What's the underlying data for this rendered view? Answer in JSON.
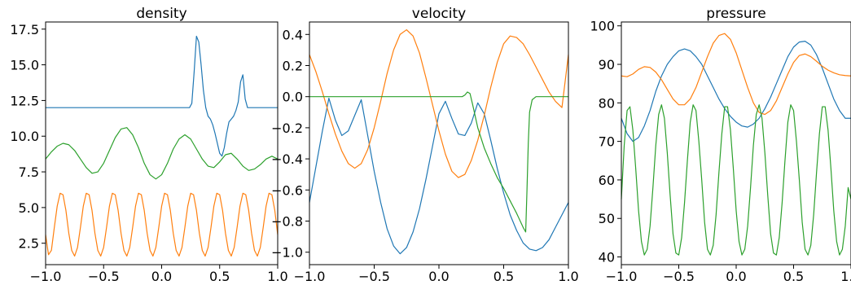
{
  "chart_data": [
    {
      "type": "line",
      "title": "density",
      "xlim": [
        -1.0,
        1.0
      ],
      "ylim": [
        1.0,
        18.0
      ],
      "x_ticks": [
        -1.0,
        -0.5,
        0.0,
        0.5,
        1.0
      ],
      "x_tick_labels": [
        "−1.0",
        "−0.5",
        "0.0",
        "0.5",
        "1.0"
      ],
      "y_ticks": [
        2.5,
        5.0,
        7.5,
        10.0,
        12.5,
        15.0,
        17.5
      ],
      "y_tick_labels": [
        "2.5",
        "5.0",
        "7.5",
        "10.0",
        "12.5",
        "15.0",
        "17.5"
      ],
      "grid": false,
      "series": [
        {
          "color": "#1f77b4",
          "x": [
            -1.0,
            -0.6,
            -0.2,
            0.1,
            0.2,
            0.22,
            0.24,
            0.26,
            0.28,
            0.3,
            0.32,
            0.34,
            0.36,
            0.38,
            0.4,
            0.42,
            0.44,
            0.46,
            0.48,
            0.5,
            0.52,
            0.54,
            0.56,
            0.58,
            0.6,
            0.62,
            0.64,
            0.66,
            0.68,
            0.7,
            0.72,
            0.74,
            0.76,
            0.78,
            0.8,
            1.0
          ],
          "y": [
            12.0,
            12.0,
            12.0,
            12.0,
            12.0,
            12.0,
            12.0,
            12.3,
            14.5,
            17.0,
            16.6,
            15.0,
            13.2,
            12.0,
            11.4,
            11.2,
            10.8,
            10.2,
            9.5,
            8.8,
            8.6,
            9.2,
            10.2,
            11.0,
            11.2,
            11.4,
            11.8,
            12.4,
            13.8,
            14.3,
            12.6,
            12.0,
            12.0,
            12.0,
            12.0,
            12.0
          ]
        },
        {
          "color": "#ff7f0e",
          "x": [
            -1.0,
            -0.975,
            -0.95,
            -0.925,
            -0.9,
            -0.875,
            -0.85,
            -0.825,
            -0.8,
            -0.775,
            -0.75,
            -0.725,
            -0.7,
            -0.675,
            -0.65,
            -0.625,
            -0.6,
            -0.575,
            -0.55,
            -0.525,
            -0.5,
            -0.475,
            -0.45,
            -0.425,
            -0.4,
            -0.375,
            -0.35,
            -0.325,
            -0.3,
            -0.275,
            -0.25,
            -0.225,
            -0.2,
            -0.175,
            -0.15,
            -0.125,
            -0.1,
            -0.075,
            -0.05,
            -0.025,
            0.0,
            0.025,
            0.05,
            0.075,
            0.1,
            0.125,
            0.15,
            0.175,
            0.2,
            0.225,
            0.25,
            0.275,
            0.3,
            0.325,
            0.35,
            0.375,
            0.4,
            0.425,
            0.45,
            0.475,
            0.5,
            0.525,
            0.55,
            0.575,
            0.6,
            0.625,
            0.65,
            0.675,
            0.7,
            0.725,
            0.75,
            0.775,
            0.8,
            0.825,
            0.85,
            0.875,
            0.9,
            0.925,
            0.95,
            0.975,
            1.0
          ],
          "y": [
            3.1,
            1.7,
            2.0,
            3.6,
            5.1,
            6.0,
            5.9,
            4.8,
            3.2,
            2.0,
            1.6,
            2.2,
            3.6,
            5.1,
            6.0,
            5.9,
            4.8,
            3.2,
            2.0,
            1.6,
            2.2,
            3.6,
            5.1,
            6.0,
            5.9,
            4.8,
            3.2,
            2.0,
            1.6,
            2.2,
            3.6,
            5.1,
            6.0,
            5.9,
            4.8,
            3.2,
            2.0,
            1.6,
            2.2,
            3.6,
            5.1,
            6.0,
            5.9,
            4.8,
            3.2,
            2.0,
            1.6,
            2.2,
            3.6,
            5.1,
            6.0,
            5.9,
            4.8,
            3.2,
            2.0,
            1.6,
            2.2,
            3.6,
            5.1,
            6.0,
            5.9,
            4.8,
            3.2,
            2.0,
            1.6,
            2.2,
            3.6,
            5.1,
            6.0,
            5.9,
            4.8,
            3.2,
            2.0,
            1.6,
            2.2,
            3.6,
            5.1,
            6.0,
            5.9,
            4.8,
            3.1
          ]
        },
        {
          "color": "#2ca02c",
          "x": [
            -1.0,
            -0.95,
            -0.9,
            -0.85,
            -0.8,
            -0.75,
            -0.7,
            -0.65,
            -0.6,
            -0.55,
            -0.5,
            -0.45,
            -0.4,
            -0.35,
            -0.3,
            -0.25,
            -0.2,
            -0.15,
            -0.1,
            -0.05,
            0.0,
            0.05,
            0.1,
            0.15,
            0.2,
            0.25,
            0.3,
            0.35,
            0.4,
            0.45,
            0.5,
            0.55,
            0.6,
            0.65,
            0.7,
            0.75,
            0.8,
            0.85,
            0.9,
            0.95,
            1.0
          ],
          "y": [
            8.4,
            8.9,
            9.3,
            9.5,
            9.4,
            9.0,
            8.4,
            7.8,
            7.4,
            7.5,
            8.1,
            9.0,
            9.9,
            10.5,
            10.6,
            10.1,
            9.2,
            8.1,
            7.3,
            7.0,
            7.3,
            8.1,
            9.1,
            9.8,
            10.1,
            9.8,
            9.1,
            8.4,
            7.9,
            7.8,
            8.2,
            8.7,
            8.8,
            8.4,
            7.9,
            7.6,
            7.7,
            8.0,
            8.4,
            8.6,
            8.4
          ]
        }
      ]
    },
    {
      "type": "line",
      "title": "velocity",
      "xlim": [
        -1.0,
        1.0
      ],
      "ylim": [
        -1.08,
        0.48
      ],
      "x_ticks": [
        -1.0,
        -0.5,
        0.0,
        0.5,
        1.0
      ],
      "x_tick_labels": [
        "−1.0",
        "−0.5",
        "0.0",
        "0.5",
        "1.0"
      ],
      "y_ticks": [
        -1.0,
        -0.8,
        -0.6,
        -0.4,
        -0.2,
        0.0,
        0.2,
        0.4
      ],
      "y_tick_labels": [
        "−1.0",
        "−0.8",
        "−0.6",
        "−0.4",
        "−0.2",
        "0.0",
        "0.2",
        "0.4"
      ],
      "grid": false,
      "series": [
        {
          "color": "#1f77b4",
          "x": [
            -1.0,
            -0.95,
            -0.9,
            -0.85,
            -0.8,
            -0.75,
            -0.7,
            -0.65,
            -0.6,
            -0.55,
            -0.5,
            -0.45,
            -0.4,
            -0.35,
            -0.3,
            -0.25,
            -0.2,
            -0.15,
            -0.1,
            -0.05,
            0.0,
            0.05,
            0.1,
            0.15,
            0.2,
            0.25,
            0.3,
            0.35,
            0.4,
            0.45,
            0.5,
            0.55,
            0.6,
            0.65,
            0.7,
            0.75,
            0.8,
            0.85,
            0.9,
            0.95,
            1.0
          ],
          "y": [
            -0.68,
            -0.45,
            -0.22,
            -0.01,
            -0.15,
            -0.25,
            -0.22,
            -0.12,
            -0.02,
            -0.25,
            -0.48,
            -0.68,
            -0.85,
            -0.96,
            -1.01,
            -0.97,
            -0.87,
            -0.72,
            -0.53,
            -0.32,
            -0.11,
            -0.03,
            -0.14,
            -0.24,
            -0.25,
            -0.17,
            -0.04,
            -0.11,
            -0.28,
            -0.46,
            -0.62,
            -0.76,
            -0.86,
            -0.94,
            -0.98,
            -0.99,
            -0.97,
            -0.92,
            -0.84,
            -0.76,
            -0.68
          ]
        },
        {
          "color": "#ff7f0e",
          "x": [
            -1.0,
            -0.95,
            -0.9,
            -0.85,
            -0.8,
            -0.75,
            -0.7,
            -0.65,
            -0.6,
            -0.55,
            -0.5,
            -0.45,
            -0.4,
            -0.35,
            -0.3,
            -0.25,
            -0.2,
            -0.15,
            -0.1,
            -0.05,
            0.0,
            0.05,
            0.1,
            0.15,
            0.2,
            0.25,
            0.3,
            0.35,
            0.4,
            0.45,
            0.5,
            0.55,
            0.6,
            0.65,
            0.7,
            0.75,
            0.8,
            0.85,
            0.9,
            0.95,
            1.0
          ],
          "y": [
            0.27,
            0.16,
            0.03,
            -0.11,
            -0.24,
            -0.35,
            -0.43,
            -0.46,
            -0.43,
            -0.34,
            -0.2,
            -0.03,
            0.15,
            0.3,
            0.4,
            0.43,
            0.39,
            0.28,
            0.12,
            -0.05,
            -0.22,
            -0.37,
            -0.48,
            -0.52,
            -0.5,
            -0.41,
            -0.28,
            -0.12,
            0.06,
            0.22,
            0.34,
            0.39,
            0.38,
            0.34,
            0.27,
            0.19,
            0.11,
            0.03,
            -0.03,
            -0.07,
            0.27
          ]
        },
        {
          "color": "#2ca02c",
          "x": [
            -1.0,
            -0.6,
            -0.2,
            0.1,
            0.18,
            0.2,
            0.22,
            0.24,
            0.26,
            0.3,
            0.35,
            0.4,
            0.45,
            0.5,
            0.55,
            0.6,
            0.65,
            0.67,
            0.68,
            0.69,
            0.7,
            0.72,
            0.75,
            0.8,
            0.9,
            1.0
          ],
          "y": [
            0.0,
            0.0,
            0.0,
            0.0,
            0.0,
            0.01,
            0.03,
            0.02,
            -0.05,
            -0.2,
            -0.33,
            -0.43,
            -0.52,
            -0.59,
            -0.67,
            -0.75,
            -0.84,
            -0.87,
            -0.6,
            -0.3,
            -0.1,
            -0.02,
            0.0,
            0.0,
            0.0,
            0.0
          ]
        }
      ]
    },
    {
      "type": "line",
      "title": "pressure",
      "xlim": [
        -1.0,
        1.0
      ],
      "ylim": [
        38.0,
        101.0
      ],
      "x_ticks": [
        -1.0,
        -0.5,
        0.0,
        0.5,
        1.0
      ],
      "x_tick_labels": [
        "−1.0",
        "−0.5",
        "0.0",
        "0.5",
        "1.0"
      ],
      "y_ticks": [
        40,
        50,
        60,
        70,
        80,
        90,
        100
      ],
      "y_tick_labels": [
        "40",
        "50",
        "60",
        "70",
        "80",
        "90",
        "100"
      ],
      "grid": false,
      "series": [
        {
          "color": "#1f77b4",
          "x": [
            -1.0,
            -0.95,
            -0.9,
            -0.85,
            -0.8,
            -0.75,
            -0.7,
            -0.65,
            -0.6,
            -0.55,
            -0.5,
            -0.45,
            -0.4,
            -0.35,
            -0.3,
            -0.25,
            -0.2,
            -0.15,
            -0.1,
            -0.05,
            0.0,
            0.05,
            0.1,
            0.15,
            0.2,
            0.25,
            0.3,
            0.35,
            0.4,
            0.45,
            0.5,
            0.55,
            0.6,
            0.65,
            0.7,
            0.75,
            0.8,
            0.85,
            0.9,
            0.95,
            1.0
          ],
          "y": [
            76,
            72,
            70,
            71,
            74,
            78,
            83,
            87,
            90,
            92,
            93.5,
            94,
            93.5,
            92,
            90,
            87,
            84,
            81,
            78.5,
            76.5,
            75,
            74,
            73.7,
            74.5,
            76,
            78.5,
            81.5,
            85,
            88.5,
            92,
            94.5,
            95.8,
            96,
            95,
            92.5,
            89,
            85,
            81,
            78,
            76,
            76
          ]
        },
        {
          "color": "#ff7f0e",
          "x": [
            -1.0,
            -0.95,
            -0.9,
            -0.85,
            -0.8,
            -0.75,
            -0.7,
            -0.65,
            -0.6,
            -0.55,
            -0.5,
            -0.45,
            -0.4,
            -0.35,
            -0.3,
            -0.25,
            -0.2,
            -0.15,
            -0.1,
            -0.05,
            0.0,
            0.05,
            0.1,
            0.15,
            0.2,
            0.25,
            0.3,
            0.35,
            0.4,
            0.45,
            0.5,
            0.55,
            0.6,
            0.65,
            0.7,
            0.75,
            0.8,
            0.85,
            0.9,
            0.95,
            1.0
          ],
          "y": [
            87,
            86.8,
            87.5,
            88.7,
            89.4,
            89.2,
            88,
            86,
            83.5,
            81,
            79.5,
            79.5,
            81,
            84,
            88,
            92,
            95.5,
            97.5,
            98,
            96.5,
            93,
            88.5,
            84,
            80,
            77.5,
            77,
            78,
            80.5,
            84,
            87.5,
            90.5,
            92.3,
            92.7,
            92,
            90.8,
            89.5,
            88.5,
            87.8,
            87.3,
            87.1,
            87
          ]
        },
        {
          "color": "#2ca02c",
          "x": [
            -1.0,
            -0.975,
            -0.95,
            -0.925,
            -0.9,
            -0.875,
            -0.85,
            -0.825,
            -0.8,
            -0.775,
            -0.75,
            -0.725,
            -0.7,
            -0.675,
            -0.65,
            -0.625,
            -0.6,
            -0.575,
            -0.55,
            -0.525,
            -0.5,
            -0.475,
            -0.45,
            -0.425,
            -0.4,
            -0.375,
            -0.35,
            -0.325,
            -0.3,
            -0.275,
            -0.25,
            -0.225,
            -0.2,
            -0.175,
            -0.15,
            -0.125,
            -0.1,
            -0.075,
            -0.05,
            -0.025,
            0.0,
            0.025,
            0.05,
            0.075,
            0.1,
            0.125,
            0.15,
            0.175,
            0.2,
            0.225,
            0.25,
            0.275,
            0.3,
            0.325,
            0.35,
            0.375,
            0.4,
            0.425,
            0.45,
            0.475,
            0.5,
            0.525,
            0.55,
            0.575,
            0.6,
            0.625,
            0.65,
            0.675,
            0.7,
            0.725,
            0.75,
            0.775,
            0.8,
            0.825,
            0.85,
            0.875,
            0.9,
            0.925,
            0.95,
            0.975,
            1.0
          ],
          "y": [
            55,
            69,
            78,
            79,
            73,
            63,
            52,
            44,
            40.5,
            42,
            48,
            58,
            69,
            77,
            79.5,
            76,
            67,
            56,
            46,
            41,
            40.5,
            45,
            54,
            65,
            75,
            79.5,
            78,
            70,
            60,
            49,
            42,
            40.5,
            43,
            51,
            62,
            72,
            79,
            79,
            73,
            63,
            52,
            44,
            40.5,
            42,
            48,
            58,
            69,
            77,
            79.5,
            76,
            67,
            56,
            46,
            41,
            40.5,
            45,
            54,
            65,
            75,
            79.5,
            78,
            70,
            60,
            49,
            42,
            40.5,
            43,
            51,
            62,
            72,
            79,
            79,
            73,
            63,
            52,
            44,
            40.5,
            42,
            48,
            58,
            55
          ]
        }
      ]
    }
  ]
}
